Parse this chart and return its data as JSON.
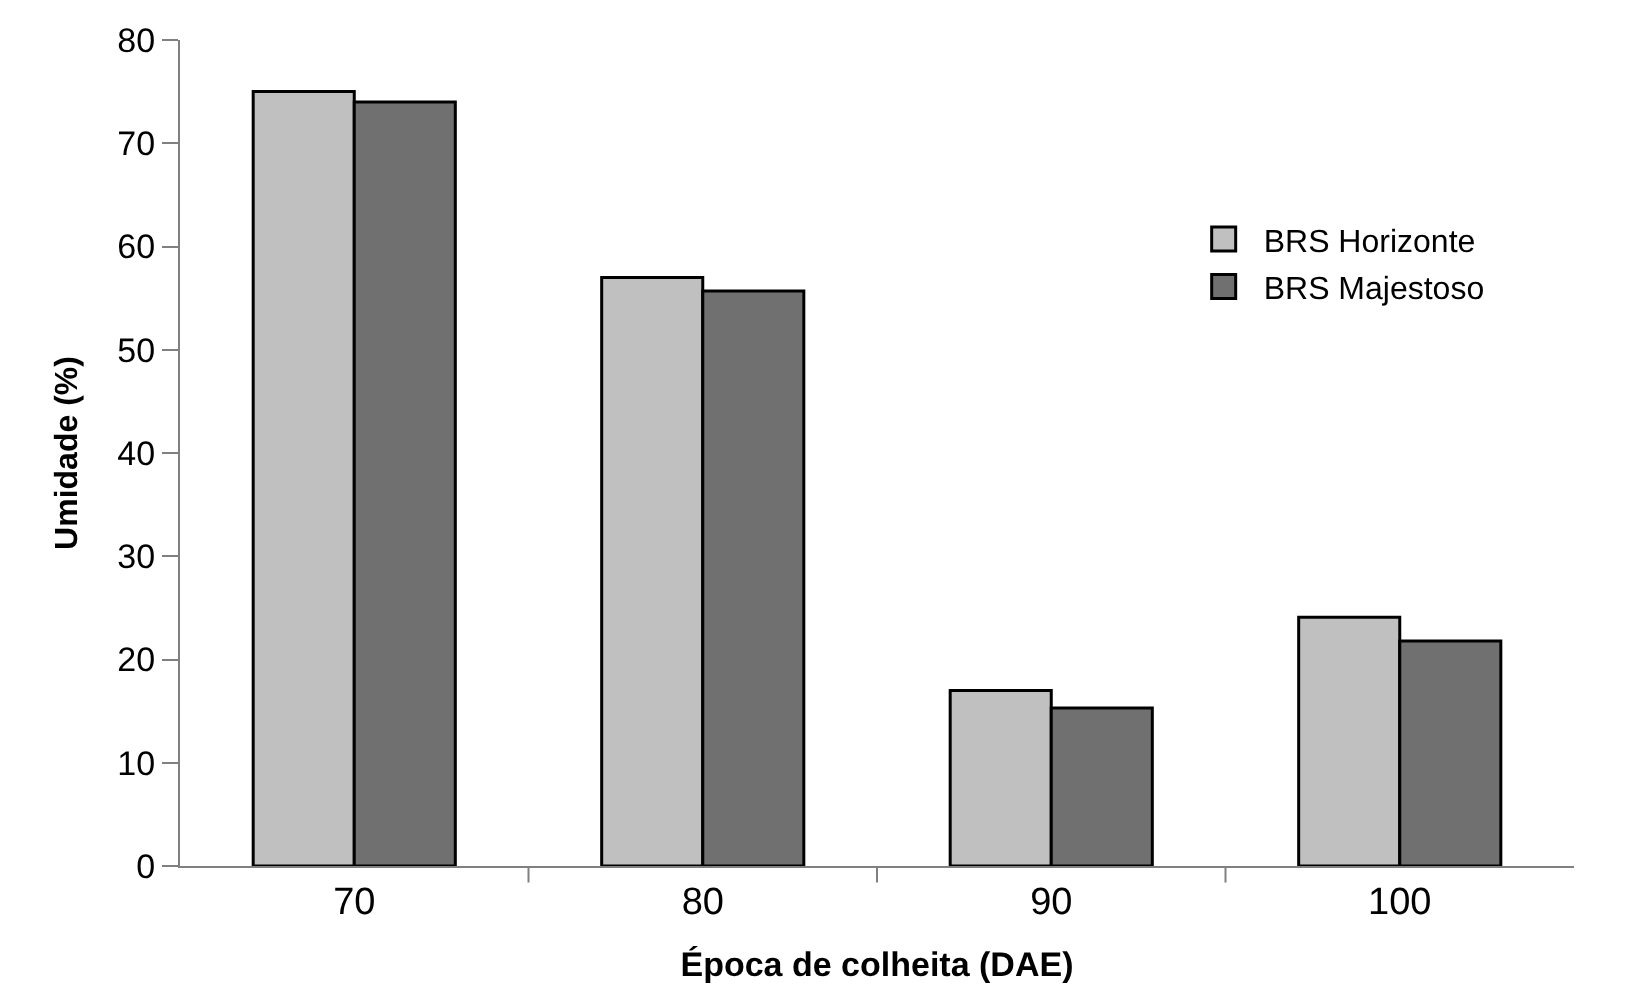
{
  "chart_data": {
    "type": "bar",
    "xlabel": "Época de colheita (DAE)",
    "ylabel": "Umidade (%)",
    "categories": [
      "70",
      "80",
      "90",
      "100"
    ],
    "series": [
      {
        "name": "BRS Horizonte",
        "color": "#c0c0c0",
        "values": [
          75,
          57,
          17,
          24.1
        ]
      },
      {
        "name": "BRS Majestoso",
        "color": "#707070",
        "values": [
          74,
          55.7,
          15.3,
          21.8
        ]
      }
    ],
    "ylim": [
      0,
      80
    ],
    "yticks": [
      0,
      10,
      20,
      30,
      40,
      50,
      60,
      70,
      80
    ],
    "legend": "right"
  }
}
